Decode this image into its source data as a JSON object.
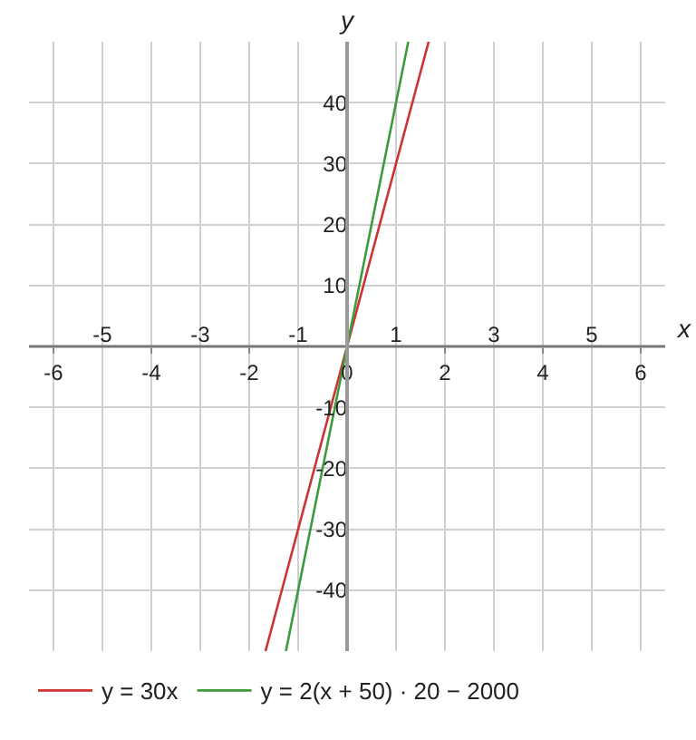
{
  "chart_data": {
    "type": "line",
    "xlabel": "x",
    "ylabel": "y",
    "series": [
      {
        "name": "y = 30x",
        "color": "#cc3333",
        "x": [
          -1.667,
          1.667
        ],
        "values": [
          -50,
          50
        ]
      },
      {
        "name": "y = 2(x + 50) · 20 − 2000",
        "color": "#3d9a3d",
        "x": [
          -1.25,
          1.25
        ],
        "values": [
          -50,
          50
        ]
      }
    ],
    "xlim": [
      -6.5,
      6.5
    ],
    "xticks": [
      -6,
      -4,
      -2,
      0,
      2,
      4,
      6
    ],
    "x2lim": [
      -6.5,
      6.5
    ],
    "x2ticks": [
      -5,
      -3,
      -1,
      1,
      3,
      5
    ],
    "ylim": [
      -50,
      50
    ],
    "yticks": [
      -40,
      -30,
      -20,
      -10,
      {
        "value": 0,
        "label": null
      },
      10,
      20,
      30,
      40
    ],
    "grid": true,
    "legend": "bottom",
    "marker": "none",
    "line_style": "solid"
  }
}
